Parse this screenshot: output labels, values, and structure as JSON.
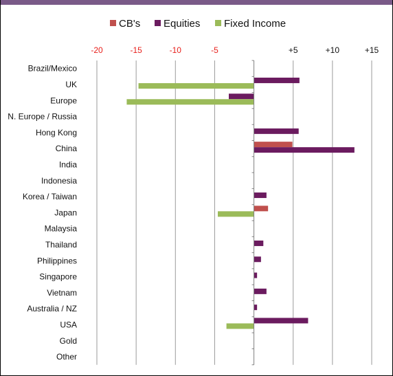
{
  "colors": {
    "header": "#7a5a88",
    "negative_tick": "#e8201c",
    "positive_tick": "#111111",
    "gridline": "#9a9a9a",
    "axis": "#808080"
  },
  "chart_data": {
    "type": "bar",
    "orientation": "horizontal",
    "xlim": [
      -20,
      15
    ],
    "x_ticks": [
      -20,
      -15,
      -10,
      -5,
      5,
      10,
      15
    ],
    "x_tick_labels": [
      "-20",
      "-15",
      "-10",
      "-5",
      "+5",
      "+10",
      "+15"
    ],
    "grid": true,
    "legend_position": "top",
    "categories": [
      "Brazil/Mexico",
      "UK",
      "Europe",
      "N. Europe / Russia",
      "Hong Kong",
      "China",
      "India",
      "Indonesia",
      "Korea / Taiwan",
      "Japan",
      "Malaysia",
      "Thailand",
      "Philippines",
      "Singapore",
      "Vietnam",
      "Australia / NZ",
      "USA",
      "Gold",
      "Other"
    ],
    "series": [
      {
        "name": "CB's",
        "color": "#c0504d",
        "values": [
          0,
          0,
          0,
          0,
          0,
          4.9,
          0,
          0,
          0,
          1.8,
          0,
          0,
          0,
          0,
          0,
          0,
          0,
          0,
          0
        ]
      },
      {
        "name": "Equities",
        "color": "#6b1b5f",
        "values": [
          0,
          5.8,
          -3.2,
          0,
          5.7,
          12.8,
          0,
          0,
          1.6,
          0,
          0,
          1.2,
          0.9,
          0.4,
          1.6,
          0.4,
          6.9,
          0,
          0
        ]
      },
      {
        "name": "Fixed Income",
        "color": "#9bbb59",
        "values": [
          0,
          -14.7,
          -16.2,
          0,
          0,
          0,
          0,
          0,
          0,
          -4.6,
          0,
          0,
          0,
          0,
          0,
          0,
          -3.5,
          0,
          0
        ]
      }
    ]
  }
}
